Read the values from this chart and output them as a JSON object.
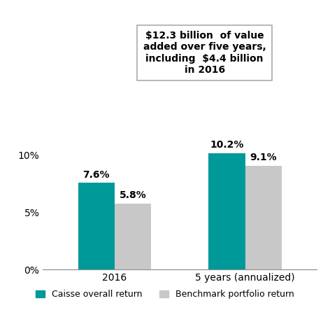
{
  "categories": [
    "2016",
    "5 years (annualized)"
  ],
  "caisse_values": [
    7.6,
    10.2
  ],
  "benchmark_values": [
    5.8,
    9.1
  ],
  "caisse_color": "#009999",
  "benchmark_color": "#c8c8c8",
  "bar_width": 0.28,
  "ylim": [
    0,
    13
  ],
  "yticks": [
    0,
    5,
    10
  ],
  "ytick_labels": [
    "0%",
    "5%",
    "10%"
  ],
  "annotation_text": "$12.3 billion  of value\nadded over five years,\nincluding  $4.4 billion\nin 2016",
  "legend_caisse": "Caisse overall return",
  "legend_benchmark": "Benchmark portfolio return",
  "label_fontsize": 10,
  "annotation_fontsize": 10,
  "tick_fontsize": 10,
  "legend_fontsize": 9
}
